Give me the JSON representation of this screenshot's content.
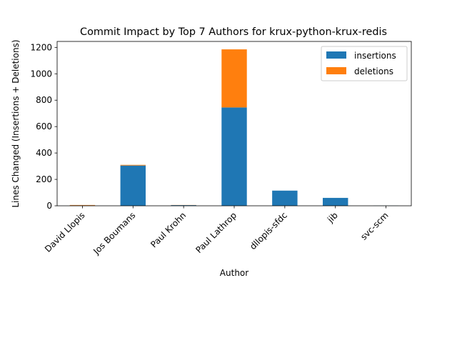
{
  "chart_data": {
    "type": "bar",
    "stacked": true,
    "title": "Commit Impact by Top 7 Authors for krux-python-krux-redis",
    "xlabel": "Author",
    "ylabel": "Lines Changed (Insertions + Deletions)",
    "categories": [
      "David Llopis",
      "Jos Boumans",
      "Paul Krohn",
      "Paul Lathrop",
      "dllopis-sfdc",
      "jib",
      "svc-scm"
    ],
    "series": [
      {
        "name": "insertions",
        "color": "#1f77b4",
        "values": [
          3,
          305,
          5,
          745,
          115,
          60,
          1
        ]
      },
      {
        "name": "deletions",
        "color": "#ff7f0e",
        "values": [
          3,
          5,
          1,
          440,
          0,
          0,
          0
        ]
      }
    ],
    "ylim": [
      0,
      1245
    ],
    "yticks": [
      0,
      200,
      400,
      600,
      800,
      1000,
      1200
    ],
    "legend_position": "top-right",
    "grid": false
  }
}
